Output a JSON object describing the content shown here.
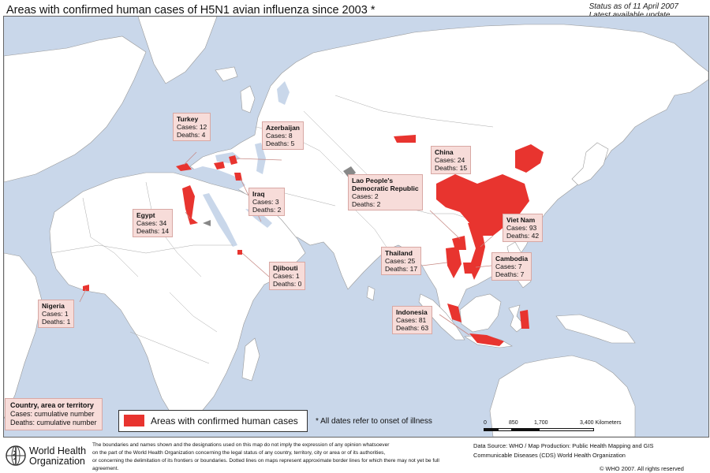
{
  "title": "Areas with confirmed human cases of H5N1 avian influenza since 2003 *",
  "status": {
    "line1": "Status as of 11 April 2007",
    "line2": "Latest available update"
  },
  "colors": {
    "ocean": "#c9d7ea",
    "land": "#ffffff",
    "affected": "#e8342f",
    "label_bg": "#f7dcd9"
  },
  "labels": [
    {
      "name": "Turkey",
      "cases": "Cases: 12",
      "deaths": "Deaths: 4"
    },
    {
      "name": "Azerbaijan",
      "cases": "Cases: 8",
      "deaths": "Deaths: 5"
    },
    {
      "name": "China",
      "cases": "Cases: 24",
      "deaths": "Deaths: 15"
    },
    {
      "name": "Lao People's Democratic Republic",
      "name1": "Lao People's",
      "name2": "Democratic Republic",
      "cases": "Cases: 2",
      "deaths": "Deaths: 2"
    },
    {
      "name": "Iraq",
      "cases": "Cases: 3",
      "deaths": "Deaths: 2"
    },
    {
      "name": "Egypt",
      "cases": "Cases: 34",
      "deaths": "Deaths: 14"
    },
    {
      "name": "Viet Nam",
      "cases": "Cases: 93",
      "deaths": "Deaths: 42"
    },
    {
      "name": "Thailand",
      "cases": "Cases: 25",
      "deaths": "Deaths: 17"
    },
    {
      "name": "Cambodia",
      "cases": "Cases: 7",
      "deaths": "Deaths: 7"
    },
    {
      "name": "Djibouti",
      "cases": "Cases: 1",
      "deaths": "Deaths: 0"
    },
    {
      "name": "Nigeria",
      "cases": "Cases: 1",
      "deaths": "Deaths: 1"
    },
    {
      "name": "Indonesia",
      "cases": "Cases: 81",
      "deaths": "Deaths: 63"
    }
  ],
  "legend": {
    "title": "Country, area or territory",
    "cases": "Cases: cumulative number",
    "deaths": "Deaths: cumulative number"
  },
  "key_label": "Areas with confirmed human cases",
  "dates_note": "*  All dates refer to onset of illness",
  "scale": {
    "ticks": [
      "0",
      "850",
      "1,700",
      "3,400 Kilometers"
    ]
  },
  "who": {
    "line1": "World Health",
    "line2": "Organization"
  },
  "disclaimer": [
    "The boundaries and names shown and the designations used on this map do not imply the expression of any opinion whatsoever",
    "on the part of the World Health Organization concerning the legal status of any country, territory, city or area or of its authorities,",
    "or concerning the delimitation of its frontiers or boundaries.  Dotted lines on maps represent approximate border lines for which there may not yet be full agreement."
  ],
  "data_source": [
    "Data Source: WHO / Map Production: Public Health Mapping and GIS",
    "Communicable Diseases (CDS) World Health Organization"
  ],
  "copyright": "© WHO 2007.  All rights reserved"
}
